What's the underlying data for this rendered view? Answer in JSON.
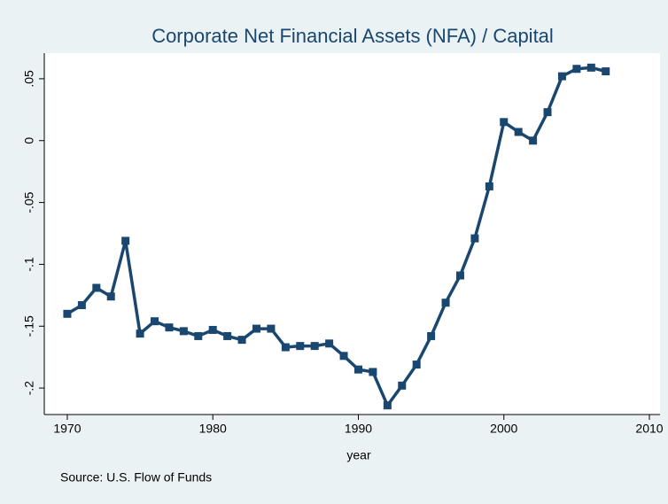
{
  "chart_data": {
    "type": "line",
    "title": "Corporate Net Financial Assets (NFA) / Capital",
    "xlabel": "year",
    "note": "Source: U.S. Flow of Funds",
    "x": [
      1970,
      1971,
      1972,
      1973,
      1974,
      1975,
      1976,
      1977,
      1978,
      1979,
      1980,
      1981,
      1982,
      1983,
      1984,
      1985,
      1986,
      1987,
      1988,
      1989,
      1990,
      1991,
      1992,
      1993,
      1994,
      1995,
      1996,
      1997,
      1998,
      1999,
      2000,
      2001,
      2002,
      2003,
      2004,
      2005,
      2006,
      2007
    ],
    "series": [
      {
        "color": "#1a476f",
        "values": [
          -0.14,
          -0.133,
          -0.119,
          -0.126,
          -0.081,
          -0.156,
          -0.146,
          -0.151,
          -0.154,
          -0.158,
          -0.153,
          -0.158,
          -0.161,
          -0.152,
          -0.152,
          -0.167,
          -0.166,
          -0.166,
          -0.164,
          -0.174,
          -0.185,
          -0.187,
          -0.214,
          -0.198,
          -0.181,
          -0.158,
          -0.131,
          -0.109,
          -0.079,
          -0.037,
          0.015,
          0.007,
          0.0,
          0.023,
          0.052,
          0.058,
          0.059,
          0.056
        ]
      }
    ],
    "xlim": [
      1968.42,
      2010.73
    ],
    "ylim": [
      -0.2214,
      0.0707
    ],
    "xticks": [
      1970,
      1980,
      1990,
      2000,
      2010
    ],
    "yticks": [
      {
        "value": 0.05,
        "label": ".05"
      },
      0,
      {
        "value": -0.05,
        "label": "-.05"
      },
      {
        "value": -0.1,
        "label": "-.1"
      },
      {
        "value": -0.15,
        "label": "-.15"
      },
      {
        "value": -0.2,
        "label": "-.2"
      }
    ],
    "grid": false
  }
}
